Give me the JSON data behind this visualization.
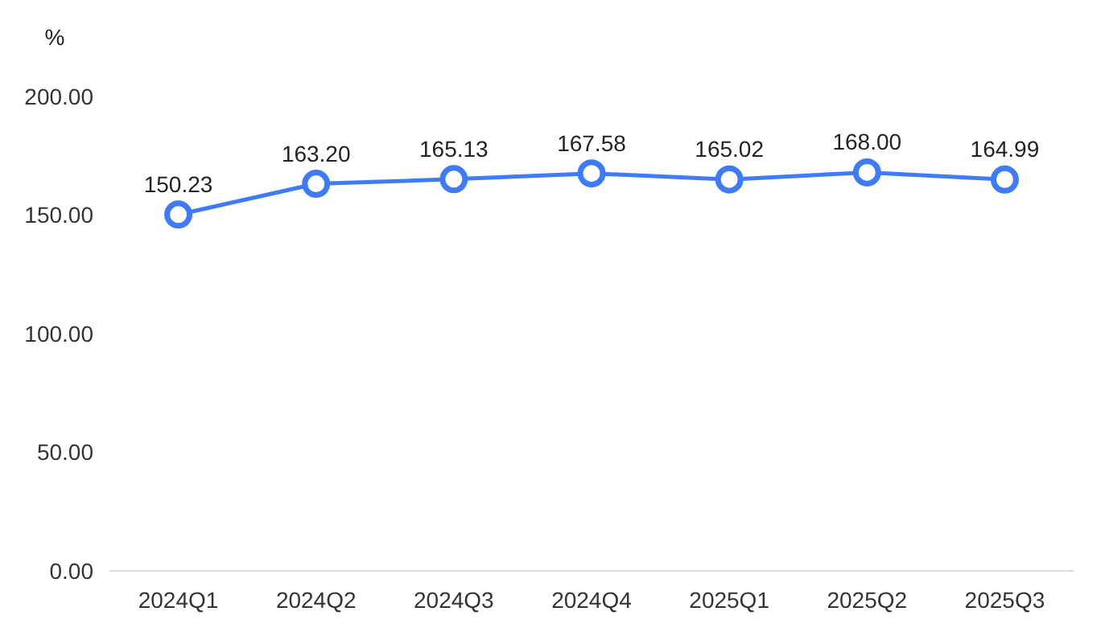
{
  "chart_data": {
    "type": "line",
    "ylabel": "%",
    "categories": [
      "2024Q1",
      "2024Q2",
      "2024Q3",
      "2024Q4",
      "2025Q1",
      "2025Q2",
      "2025Q3"
    ],
    "series": [
      {
        "color": "#3d7bfa",
        "values": [
          150.23,
          163.2,
          165.13,
          167.58,
          165.02,
          168.0,
          164.99
        ]
      }
    ],
    "ylim": [
      0,
      200
    ],
    "yticks": [
      {
        "value": 0,
        "label": "0.00"
      },
      {
        "value": 50,
        "label": "50.00"
      },
      {
        "value": 100,
        "label": "100.00"
      },
      {
        "value": 150,
        "label": "150.00"
      },
      {
        "value": 200,
        "label": "200.00"
      }
    ],
    "value_labels": [
      "150.23",
      "163.20",
      "165.13",
      "167.58",
      "165.02",
      "168.00",
      "164.99"
    ],
    "marker": "circle",
    "grid": false
  }
}
